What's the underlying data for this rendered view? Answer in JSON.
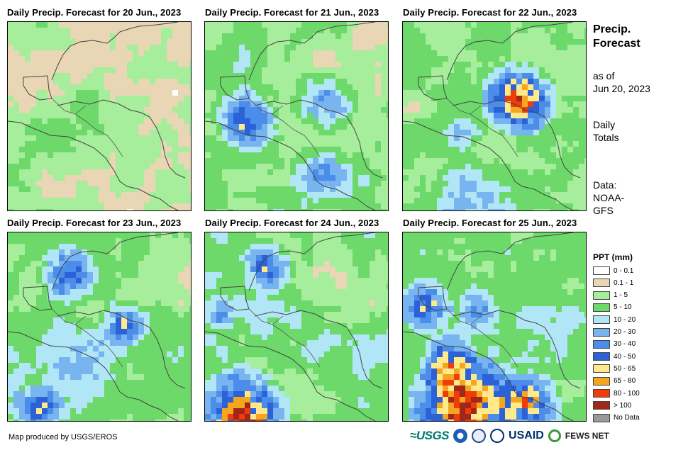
{
  "panels": [
    {
      "title": "Daily Precip. Forecast for 20 Jun., 2023",
      "regime": "light"
    },
    {
      "title": "Daily Precip. Forecast for 21 Jun., 2023",
      "regime": "moderate"
    },
    {
      "title": "Daily Precip. Forecast for 22 Jun., 2023",
      "regime": "heavy-east"
    },
    {
      "title": "Daily Precip. Forecast for 23 Jun., 2023",
      "regime": "moderate-north"
    },
    {
      "title": "Daily Precip. Forecast for 24 Jun., 2023",
      "regime": "heavy-south"
    },
    {
      "title": "Daily Precip. Forecast for 25 Jun., 2023",
      "regime": "heavy-widespread"
    }
  ],
  "side": {
    "title_line1": "Precip.",
    "title_line2": "Forecast",
    "asof_line1": "as of",
    "asof_line2": "Jun 20, 2023",
    "totals_line1": "Daily",
    "totals_line2": "Totals",
    "source_line1": "Data:",
    "source_line2": "NOAA-",
    "source_line3": "GFS"
  },
  "legend": {
    "title": "PPT (mm)",
    "items": [
      {
        "label": "0 - 0.1",
        "color": "#ffffff"
      },
      {
        "label": "0.1 - 1",
        "color": "#e8d6b4"
      },
      {
        "label": "1 - 5",
        "color": "#a6ed9c"
      },
      {
        "label": "5 - 10",
        "color": "#6cd96a"
      },
      {
        "label": "10 - 20",
        "color": "#b0e6f5"
      },
      {
        "label": "20 - 30",
        "color": "#78b4f0"
      },
      {
        "label": "30 - 40",
        "color": "#4b8de8"
      },
      {
        "label": "40 - 50",
        "color": "#2b62d8"
      },
      {
        "label": "50 - 65",
        "color": "#ffe98a"
      },
      {
        "label": "65 - 80",
        "color": "#f5a51e"
      },
      {
        "label": "80 - 100",
        "color": "#f03c0a"
      },
      {
        "label": "> 100",
        "color": "#a0281a"
      },
      {
        "label": "No Data",
        "color": "#999999"
      }
    ]
  },
  "footer": {
    "credit": "Map produced by USGS/EROS"
  },
  "logos": {
    "usgs": "≈USGS",
    "usaid": "USAID",
    "fews": "FEWS NET"
  }
}
